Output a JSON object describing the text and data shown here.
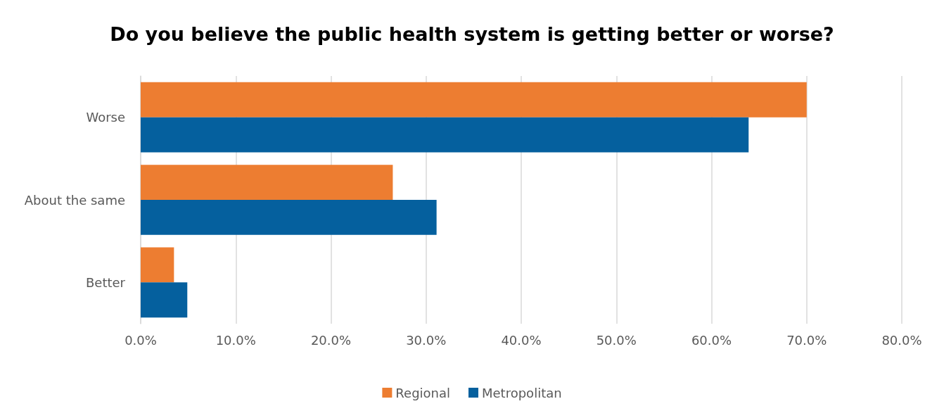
{
  "chart_data": {
    "type": "bar",
    "orientation": "horizontal",
    "title": "Do you believe the public health system is getting better or worse?",
    "categories": [
      "Worse",
      "About the same",
      "Better"
    ],
    "series": [
      {
        "name": "Regional",
        "color": "#ed7d31",
        "values": [
          70.0,
          26.5,
          3.5
        ]
      },
      {
        "name": "Metropolitan",
        "color": "#05609e",
        "values": [
          63.9,
          31.1,
          4.9
        ]
      }
    ],
    "xlim": [
      0,
      80
    ],
    "xticks": [
      {
        "value": 0,
        "label": "0.0%"
      },
      {
        "value": 10,
        "label": "10.0%"
      },
      {
        "value": 20,
        "label": "20.0%"
      },
      {
        "value": 30,
        "label": "30.0%"
      },
      {
        "value": 40,
        "label": "40.0%"
      },
      {
        "value": 50,
        "label": "50.0%"
      },
      {
        "value": 60,
        "label": "60.0%"
      },
      {
        "value": 70,
        "label": "70.0%"
      },
      {
        "value": 80,
        "label": "80.0%"
      }
    ],
    "grid": "x",
    "legend": "bottom"
  }
}
